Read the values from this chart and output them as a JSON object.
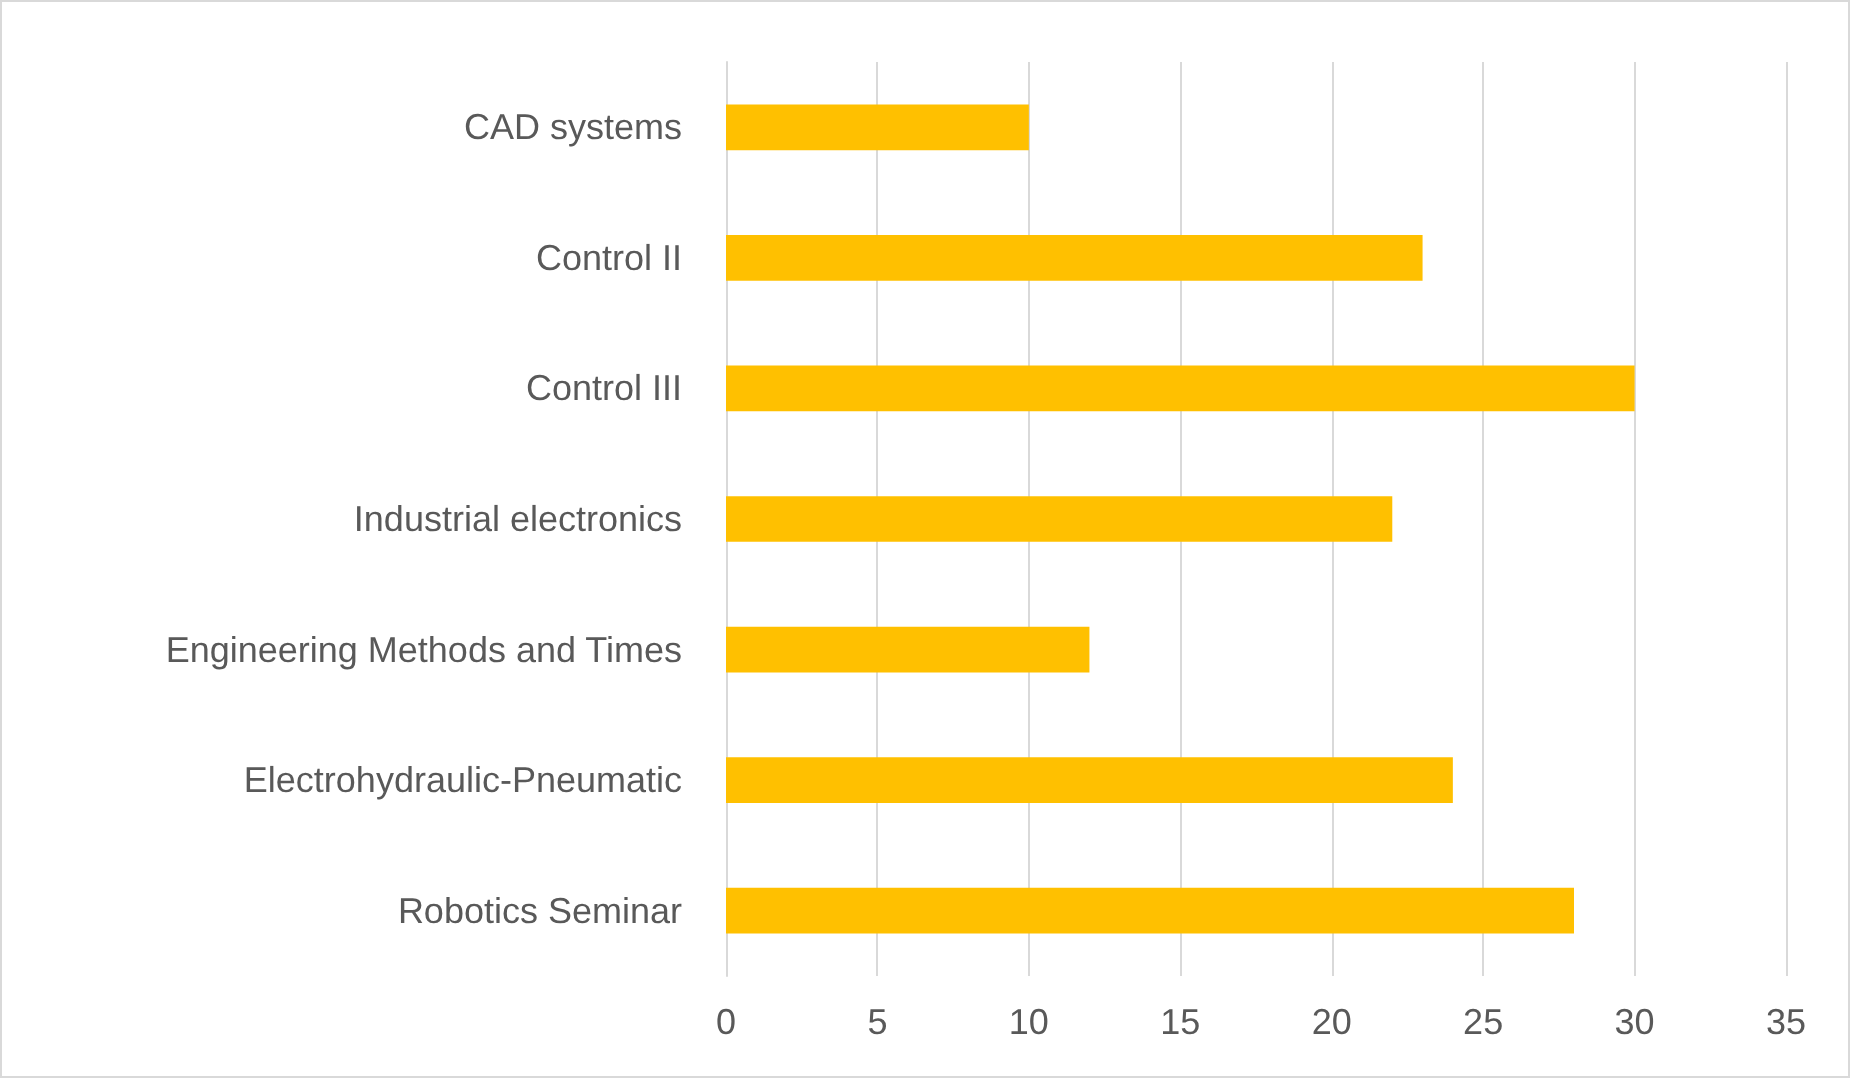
{
  "chart_data": {
    "type": "bar",
    "orientation": "horizontal",
    "categories": [
      "CAD systems",
      "Control II",
      "Control III",
      "Industrial electronics",
      "Engineering Methods and Times",
      "Electrohydraulic-Pneumatic",
      "Robotics Seminar"
    ],
    "values": [
      10,
      23,
      30,
      22,
      12,
      24,
      28
    ],
    "color": "#ffc000",
    "xlim": [
      0,
      35
    ],
    "xticks": [
      0,
      5,
      10,
      15,
      20,
      25,
      30,
      35
    ],
    "grid": "x"
  }
}
